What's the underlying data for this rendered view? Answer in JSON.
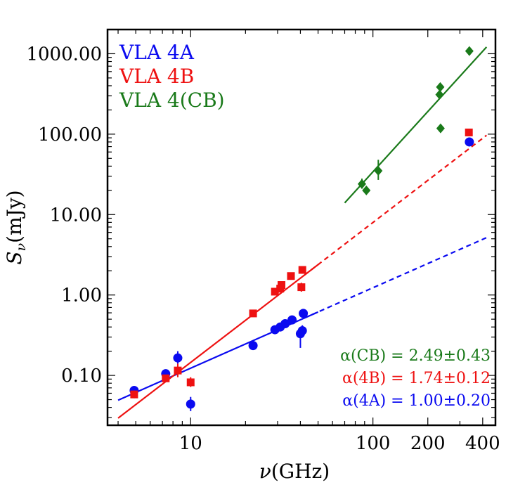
{
  "chart_data": {
    "type": "scatter",
    "xscale": "log",
    "yscale": "log",
    "xlim": [
      3.5,
      470
    ],
    "ylim": [
      0.024,
      2000
    ],
    "xlabel": {
      "main": "ν",
      "unit": "(GHz)"
    },
    "ylabel": {
      "main": "S",
      "sub": "ν",
      "unit": "(mJy)"
    },
    "x_ticks": [
      {
        "value": 10,
        "label": "10"
      },
      {
        "value": 100,
        "label": "100"
      },
      {
        "value": 200,
        "label": "200"
      },
      {
        "value": 400,
        "label": "400"
      }
    ],
    "y_ticks": [
      {
        "value": 0.1,
        "label": "0.10"
      },
      {
        "value": 1,
        "label": "1.00"
      },
      {
        "value": 10,
        "label": "10.00"
      },
      {
        "value": 100,
        "label": "100.00"
      },
      {
        "value": 1000,
        "label": "1000.00"
      }
    ],
    "colors": {
      "a": "#0a0af0",
      "b": "#ee1111",
      "cb": "#1a7a1a"
    },
    "legend": [
      {
        "label": "VLA 4A",
        "color": "#0a0af0"
      },
      {
        "label": "VLA 4B",
        "color": "#ee1111"
      },
      {
        "label": "VLA 4(CB)",
        "color": "#1a7a1a"
      }
    ],
    "annotations": [
      {
        "text": "α(CB) = 2.49±0.43",
        "color": "#1a7a1a"
      },
      {
        "text": "α(4B) = 1.74±0.12",
        "color": "#ee1111"
      },
      {
        "text": "α(4A) = 1.00±0.20",
        "color": "#0a0af0"
      }
    ],
    "series": [
      {
        "name": "VLA 4A",
        "marker": "circle",
        "color": "#0a0af0",
        "points": [
          {
            "x": 4.9,
            "y": 0.065,
            "ylo": 0.058,
            "yhi": 0.072
          },
          {
            "x": 7.3,
            "y": 0.105,
            "ylo": 0.098,
            "yhi": 0.112
          },
          {
            "x": 8.5,
            "y": 0.165,
            "ylo": 0.14,
            "yhi": 0.2
          },
          {
            "x": 10.0,
            "y": 0.044,
            "ylo": 0.036,
            "yhi": 0.054
          },
          {
            "x": 22.0,
            "y": 0.235,
            "ylo": 0.225,
            "yhi": 0.245
          },
          {
            "x": 29.0,
            "y": 0.37,
            "ylo": 0.34,
            "yhi": 0.4
          },
          {
            "x": 31.0,
            "y": 0.4,
            "ylo": 0.37,
            "yhi": 0.43
          },
          {
            "x": 33.0,
            "y": 0.44,
            "ylo": 0.41,
            "yhi": 0.47
          },
          {
            "x": 36.0,
            "y": 0.49,
            "ylo": 0.46,
            "yhi": 0.52
          },
          {
            "x": 40.0,
            "y": 0.33,
            "ylo": 0.22,
            "yhi": 0.4
          },
          {
            "x": 41.0,
            "y": 0.36,
            "ylo": 0.3,
            "yhi": 0.42
          },
          {
            "x": 41.5,
            "y": 0.59,
            "ylo": 0.55,
            "yhi": 0.63
          },
          {
            "x": 338.0,
            "y": 80.0,
            "ylo": 76.0,
            "yhi": 85.0
          }
        ],
        "fit": {
          "x": [
            4.0,
            50.0
          ],
          "alpha": 1.0,
          "x0": 10,
          "y0": 0.123
        },
        "extrapolation": {
          "x": [
            42.0,
            430.0
          ]
        }
      },
      {
        "name": "VLA 4B",
        "marker": "square",
        "color": "#ee1111",
        "points": [
          {
            "x": 4.9,
            "y": 0.058,
            "ylo": 0.052,
            "yhi": 0.065
          },
          {
            "x": 7.3,
            "y": 0.092,
            "ylo": 0.087,
            "yhi": 0.097
          },
          {
            "x": 8.5,
            "y": 0.115,
            "ylo": 0.095,
            "yhi": 0.14
          },
          {
            "x": 10.0,
            "y": 0.082,
            "ylo": 0.072,
            "yhi": 0.095
          },
          {
            "x": 22.0,
            "y": 0.59,
            "ylo": 0.56,
            "yhi": 0.62
          },
          {
            "x": 29.0,
            "y": 1.1,
            "ylo": 1.05,
            "yhi": 1.16
          },
          {
            "x": 31.0,
            "y": 1.2,
            "ylo": 1.13,
            "yhi": 1.28
          },
          {
            "x": 31.5,
            "y": 1.33,
            "ylo": 1.25,
            "yhi": 1.42
          },
          {
            "x": 35.5,
            "y": 1.72,
            "ylo": 1.63,
            "yhi": 1.82
          },
          {
            "x": 40.5,
            "y": 1.25,
            "ylo": 1.1,
            "yhi": 1.42
          },
          {
            "x": 41.0,
            "y": 2.05,
            "ylo": 1.9,
            "yhi": 2.22
          },
          {
            "x": 336.0,
            "y": 105.0,
            "ylo": 98.0,
            "yhi": 112.0
          }
        ],
        "fit": {
          "x": [
            4.0,
            50.0
          ],
          "alpha": 1.74,
          "x0": 10,
          "y0": 0.145
        },
        "extrapolation": {
          "x": [
            42.0,
            420.0
          ]
        }
      },
      {
        "name": "VLA 4(CB)",
        "marker": "diamond",
        "color": "#1a7a1a",
        "points": [
          {
            "x": 87.0,
            "y": 24.0,
            "ylo": 21.0,
            "yhi": 28.0
          },
          {
            "x": 92.0,
            "y": 20.0,
            "ylo": 18.5,
            "yhi": 22.0
          },
          {
            "x": 107.0,
            "y": 35.0,
            "ylo": 27.0,
            "yhi": 48.0
          },
          {
            "x": 232.0,
            "y": 310.0,
            "ylo": 280.0,
            "yhi": 340.0
          },
          {
            "x": 234.0,
            "y": 385.0,
            "ylo": 340.0,
            "yhi": 430.0
          },
          {
            "x": 235.0,
            "y": 118.0,
            "ylo": 110.0,
            "yhi": 127.0
          },
          {
            "x": 338.0,
            "y": 1080.0,
            "ylo": 1000.0,
            "yhi": 1170.0
          }
        ],
        "fit": {
          "x": [
            70.0,
            420.0
          ],
          "alpha": 2.49,
          "x0": 100,
          "y0": 34.0
        }
      }
    ]
  }
}
